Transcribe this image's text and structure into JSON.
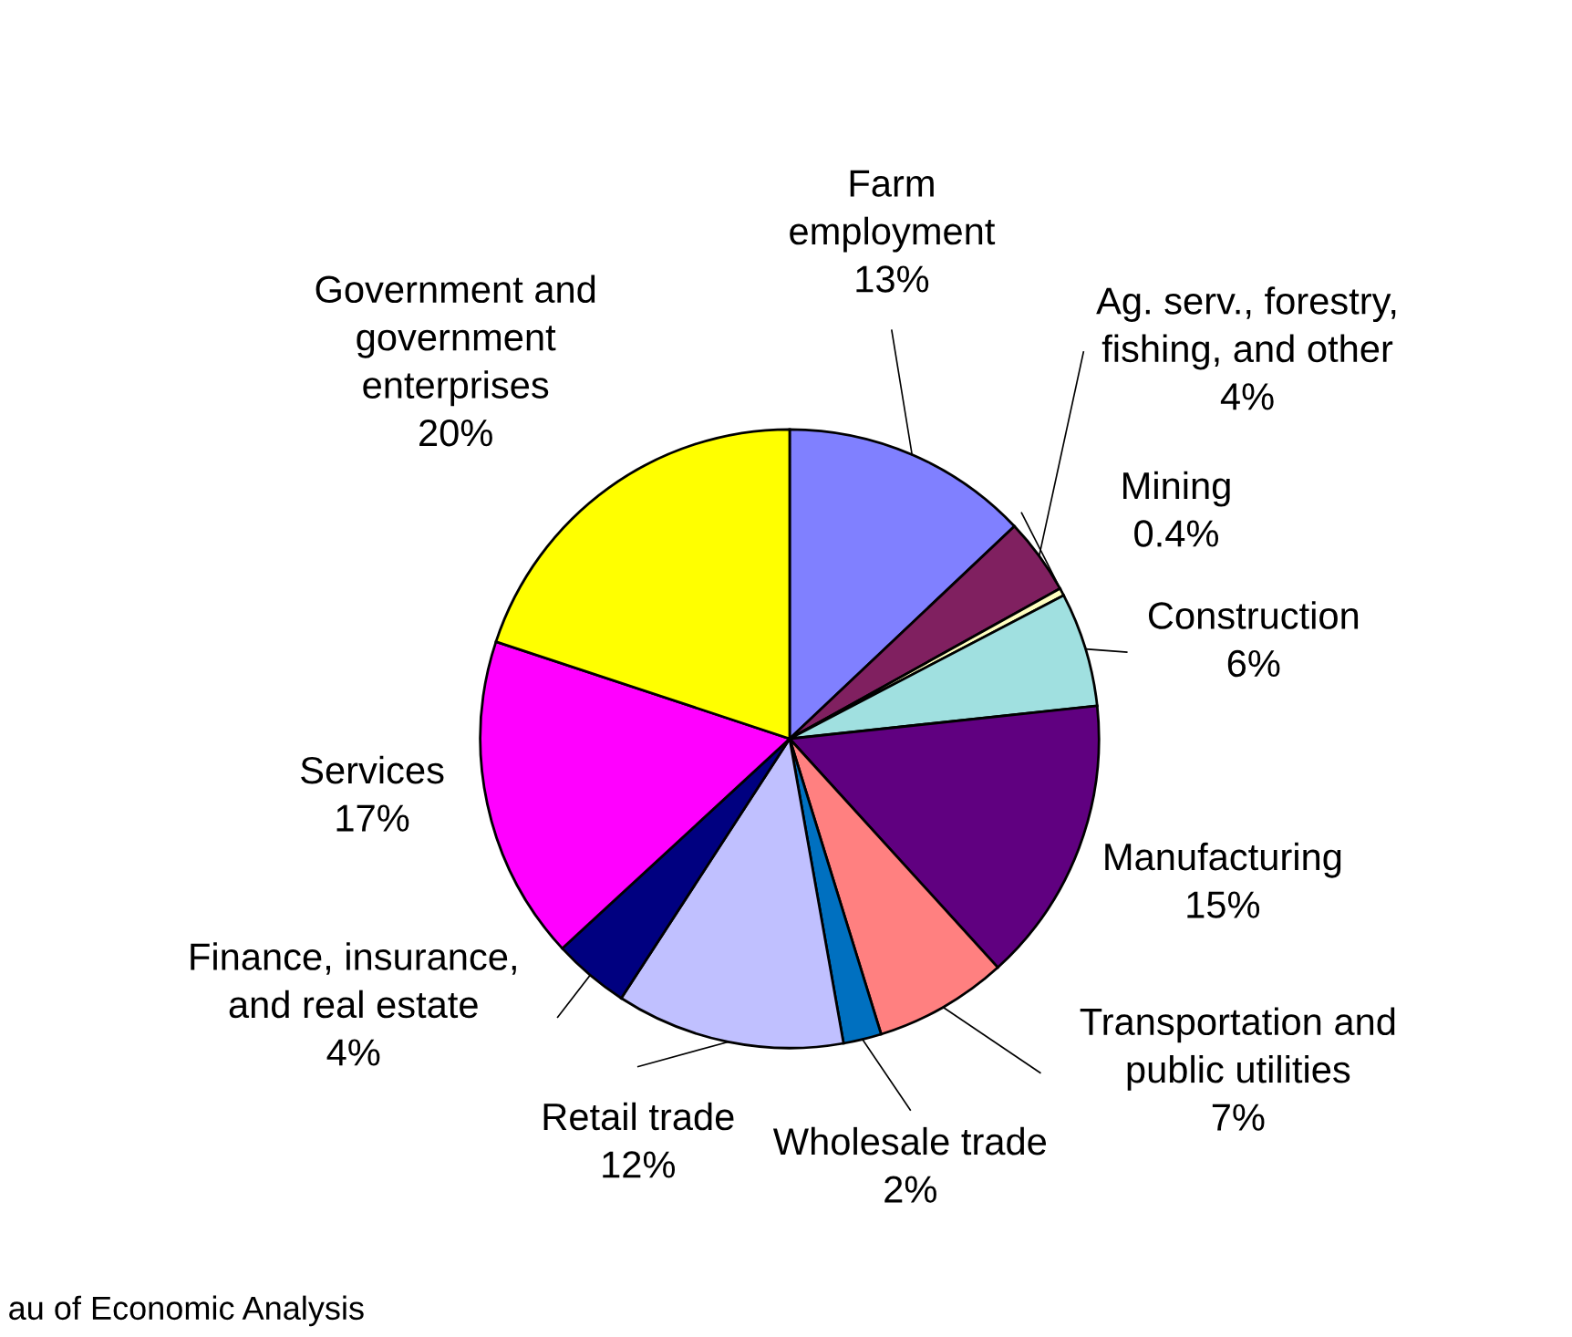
{
  "chart_data": {
    "type": "pie",
    "categories": [
      "Farm\nemployment",
      "Ag. serv., forestry,\nfishing, and other",
      "Mining",
      "Construction",
      "Manufacturing",
      "Transportation and\npublic utilities",
      "Wholesale trade",
      "Retail trade",
      "Finance, insurance,\nand real estate",
      "Services",
      "Government and\ngovernment\nenterprises"
    ],
    "values": [
      13,
      4,
      0.4,
      6,
      15,
      7,
      2,
      12,
      4,
      17,
      20
    ],
    "value_labels": [
      "13%",
      "4%",
      "0.4%",
      "6%",
      "15%",
      "7%",
      "2%",
      "12%",
      "4%",
      "17%",
      "20%"
    ],
    "colors": [
      "#8080ff",
      "#802060",
      "#ffffc0",
      "#a0e0e0",
      "#600080",
      "#ff8080",
      "#0070c0",
      "#c0c0ff",
      "#000080",
      "#ff00ff",
      "#ffff00"
    ],
    "annotations": [
      "au of Economic Analysis"
    ]
  }
}
